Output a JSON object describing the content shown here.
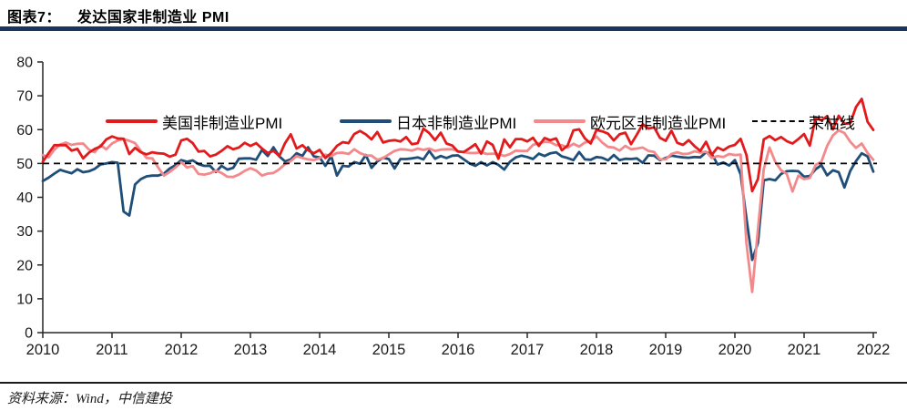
{
  "header": {
    "figure_label": "图表7：",
    "title": "发达国家非制造业 PMI"
  },
  "footer": {
    "source": "资料来源：Wind，中信建投"
  },
  "colors": {
    "title_rule": "#17375E",
    "us_line": "#E31A1C",
    "japan_line": "#1F4E79",
    "eurozone_line": "#F4898B",
    "reference_line": "#000000",
    "axis": "#262626"
  },
  "chart_data": {
    "type": "line",
    "title": "发达国家非制造业 PMI",
    "frequency": "monthly",
    "x_range": [
      "2010-01",
      "2022-01"
    ],
    "xticks": [
      2010,
      2011,
      2012,
      2013,
      2014,
      2015,
      2016,
      2017,
      2018,
      2019,
      2020,
      2021,
      2022
    ],
    "ylim": [
      0,
      80
    ],
    "yticks": [
      0,
      10,
      20,
      30,
      40,
      50,
      60,
      70,
      80
    ],
    "grid": false,
    "legend_position": "top",
    "reference_line": {
      "label": "荣枯线",
      "value": 50,
      "style": "dashed",
      "color": "#000000"
    },
    "series": [
      {
        "name": "美国非制造业PMI",
        "color": "#E31A1C",
        "values": [
          50.5,
          53.0,
          55.4,
          55.4,
          55.4,
          53.8,
          54.3,
          51.5,
          53.2,
          54.3,
          55.0,
          57.1,
          58.0,
          57.4,
          57.3,
          52.8,
          54.6,
          53.3,
          52.7,
          53.3,
          53.0,
          52.9,
          52.0,
          52.6,
          56.8,
          57.3,
          56.0,
          53.5,
          53.7,
          52.1,
          52.6,
          53.7,
          55.1,
          54.2,
          54.7,
          56.1,
          55.2,
          56.0,
          54.4,
          53.1,
          53.7,
          52.2,
          56.0,
          58.6,
          54.4,
          55.4,
          53.9,
          53.0,
          54.0,
          51.6,
          53.1,
          55.2,
          56.3,
          56.0,
          58.7,
          59.6,
          58.6,
          57.1,
          59.3,
          56.2,
          56.7,
          56.9,
          56.5,
          57.8,
          55.7,
          56.0,
          60.3,
          59.0,
          56.9,
          59.1,
          55.9,
          55.3,
          53.5,
          53.4,
          54.5,
          55.7,
          52.9,
          56.5,
          55.5,
          51.4,
          57.1,
          54.8,
          57.2,
          57.2,
          56.5,
          57.6,
          55.2,
          57.5,
          56.9,
          57.4,
          53.9,
          55.3,
          59.8,
          60.1,
          57.4,
          55.9,
          59.9,
          59.5,
          58.8,
          56.8,
          58.6,
          59.1,
          55.7,
          58.5,
          61.6,
          60.3,
          60.7,
          57.6,
          56.7,
          59.7,
          56.1,
          55.5,
          56.9,
          55.1,
          53.7,
          56.4,
          52.6,
          54.7,
          53.9,
          55.0,
          55.5,
          57.3,
          52.5,
          41.8,
          45.4,
          57.1,
          58.1,
          56.9,
          57.8,
          56.6,
          55.9,
          57.2,
          58.7,
          55.3,
          63.7,
          62.7,
          64.0,
          60.1,
          64.1,
          61.7,
          61.9,
          66.7,
          69.1,
          62.3,
          59.9
        ]
      },
      {
        "name": "日本非制造业PMI",
        "color": "#1F4E79",
        "values": [
          44.8,
          45.8,
          47.0,
          48.1,
          47.6,
          47.1,
          48.3,
          47.4,
          47.7,
          48.4,
          49.7,
          50.0,
          50.4,
          50.2,
          35.8,
          34.6,
          43.8,
          45.4,
          46.2,
          46.4,
          46.4,
          47.0,
          48.5,
          49.5,
          51.0,
          50.5,
          50.9,
          49.8,
          49.3,
          49.3,
          47.5,
          49.3,
          48.2,
          48.7,
          51.4,
          51.5,
          51.5,
          51.1,
          54.0,
          52.2,
          54.8,
          52.1,
          50.6,
          51.2,
          53.0,
          52.2,
          54.8,
          52.1,
          51.8,
          49.3,
          52.2,
          46.4,
          49.3,
          49.1,
          50.4,
          49.9,
          52.5,
          48.7,
          50.6,
          51.7,
          51.3,
          48.5,
          51.3,
          51.3,
          51.5,
          51.8,
          51.2,
          53.7,
          51.4,
          52.2,
          51.6,
          52.3,
          52.4,
          51.2,
          50.0,
          49.3,
          50.4,
          49.4,
          50.4,
          49.6,
          48.2,
          50.5,
          51.8,
          52.3,
          51.9,
          51.3,
          52.9,
          52.2,
          53.0,
          53.3,
          52.1,
          51.6,
          51.0,
          53.4,
          51.2,
          51.1,
          51.9,
          51.7,
          50.9,
          52.5,
          51.0,
          51.4,
          51.3,
          51.5,
          50.2,
          52.4,
          52.3,
          51.0,
          51.6,
          52.3,
          52.0,
          51.8,
          51.7,
          51.9,
          51.8,
          53.3,
          52.8,
          49.7,
          50.3,
          49.4,
          51.0,
          46.8,
          33.8,
          21.5,
          26.5,
          45.0,
          45.4,
          45.0,
          46.9,
          47.7,
          47.8,
          47.7,
          46.1,
          46.3,
          48.3,
          49.5,
          46.5,
          48.0,
          47.4,
          42.9,
          47.8,
          50.7,
          53.0,
          52.1,
          47.6
        ]
      },
      {
        "name": "欧元区非制造业PMI",
        "color": "#F4898B",
        "values": [
          52.5,
          51.8,
          54.1,
          55.6,
          56.2,
          55.5,
          55.8,
          55.9,
          54.1,
          53.3,
          55.4,
          54.2,
          55.9,
          56.8,
          57.2,
          56.7,
          56.0,
          53.7,
          51.6,
          51.5,
          48.8,
          46.4,
          47.5,
          48.8,
          50.4,
          48.8,
          49.2,
          46.9,
          46.7,
          47.1,
          47.9,
          47.2,
          46.1,
          46.0,
          46.7,
          47.8,
          48.6,
          47.9,
          46.4,
          47.0,
          47.2,
          48.3,
          49.8,
          50.7,
          52.2,
          51.6,
          51.2,
          51.0,
          51.6,
          52.6,
          52.2,
          53.1,
          53.2,
          52.8,
          54.2,
          53.1,
          52.4,
          52.3,
          51.1,
          51.6,
          52.7,
          53.7,
          54.2,
          54.1,
          53.8,
          54.4,
          54.0,
          54.4,
          53.7,
          54.1,
          54.2,
          54.2,
          53.6,
          53.3,
          53.1,
          53.1,
          53.3,
          52.8,
          52.9,
          52.8,
          52.2,
          52.8,
          53.8,
          53.7,
          53.7,
          55.5,
          56.0,
          56.4,
          56.3,
          55.4,
          55.4,
          54.7,
          55.8,
          55.0,
          56.2,
          56.6,
          58.0,
          56.2,
          54.9,
          54.7,
          53.8,
          55.2,
          54.2,
          54.4,
          54.7,
          53.7,
          53.4,
          51.2,
          51.2,
          52.8,
          53.3,
          52.8,
          52.9,
          53.6,
          53.2,
          53.5,
          51.6,
          52.2,
          51.9,
          52.8,
          52.5,
          52.6,
          26.4,
          12.0,
          30.5,
          48.3,
          54.7,
          50.5,
          48.0,
          46.9,
          41.7,
          46.4,
          45.4,
          45.7,
          49.6,
          50.5,
          55.2,
          58.3,
          59.8,
          59.0,
          56.4,
          54.6,
          55.9,
          53.1,
          51.1
        ]
      }
    ]
  }
}
